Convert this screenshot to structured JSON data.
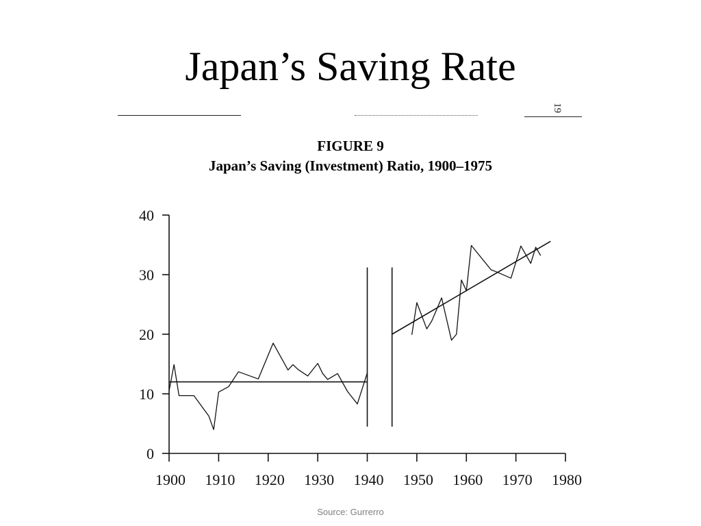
{
  "slide": {
    "title": "Japan’s Saving Rate",
    "page_mark": "19",
    "source": "Source: Gurrerro"
  },
  "figure": {
    "number": "FIGURE 9",
    "title": "Japan’s Saving (Investment) Ratio, 1900–1975"
  },
  "chart_data": {
    "type": "line",
    "title": "Japan’s Saving (Investment) Ratio, 1900–1975",
    "xlabel": "",
    "ylabel": "",
    "xlim": [
      1900,
      1980
    ],
    "ylim": [
      0,
      40
    ],
    "x_ticks": [
      1900,
      1910,
      1920,
      1930,
      1940,
      1950,
      1960,
      1970,
      1980
    ],
    "y_ticks": [
      0,
      10,
      20,
      30,
      40
    ],
    "grid": false,
    "series": [
      {
        "role": "data",
        "x": [
          1900,
          1901,
          1902,
          1905,
          1908,
          1909,
          1910,
          1912,
          1914,
          1918,
          1921,
          1924,
          1925,
          1926,
          1928,
          1930,
          1931,
          1932,
          1934,
          1936,
          1938,
          1940
        ],
        "values": [
          10.5,
          14.9,
          9.7,
          9.7,
          6.3,
          4.0,
          10.3,
          11.2,
          13.7,
          12.5,
          18.5,
          14.0,
          14.9,
          14.1,
          13.0,
          15.1,
          13.4,
          12.4,
          13.4,
          10.4,
          8.3,
          13.5
        ]
      },
      {
        "role": "data",
        "x": [
          1949,
          1950,
          1952,
          1953,
          1955,
          1957,
          1958,
          1959,
          1960,
          1961,
          1965,
          1966,
          1969,
          1971,
          1973,
          1974,
          1975
        ],
        "values": [
          19.9,
          25.3,
          20.9,
          22.2,
          26.1,
          19.0,
          20.0,
          29.1,
          27.3,
          34.9,
          30.8,
          30.5,
          29.4,
          34.8,
          31.9,
          34.6,
          33.2
        ]
      },
      {
        "role": "trend",
        "x": [
          1900,
          1940
        ],
        "values": [
          12.0,
          12.0
        ]
      },
      {
        "role": "trend",
        "x": [
          1945,
          1977
        ],
        "values": [
          20.0,
          35.6
        ]
      }
    ],
    "reference_lines": [
      {
        "x": 1940,
        "y_range": [
          4.5,
          31.2
        ]
      },
      {
        "x": 1945,
        "y_range": [
          4.5,
          31.2
        ]
      }
    ]
  }
}
